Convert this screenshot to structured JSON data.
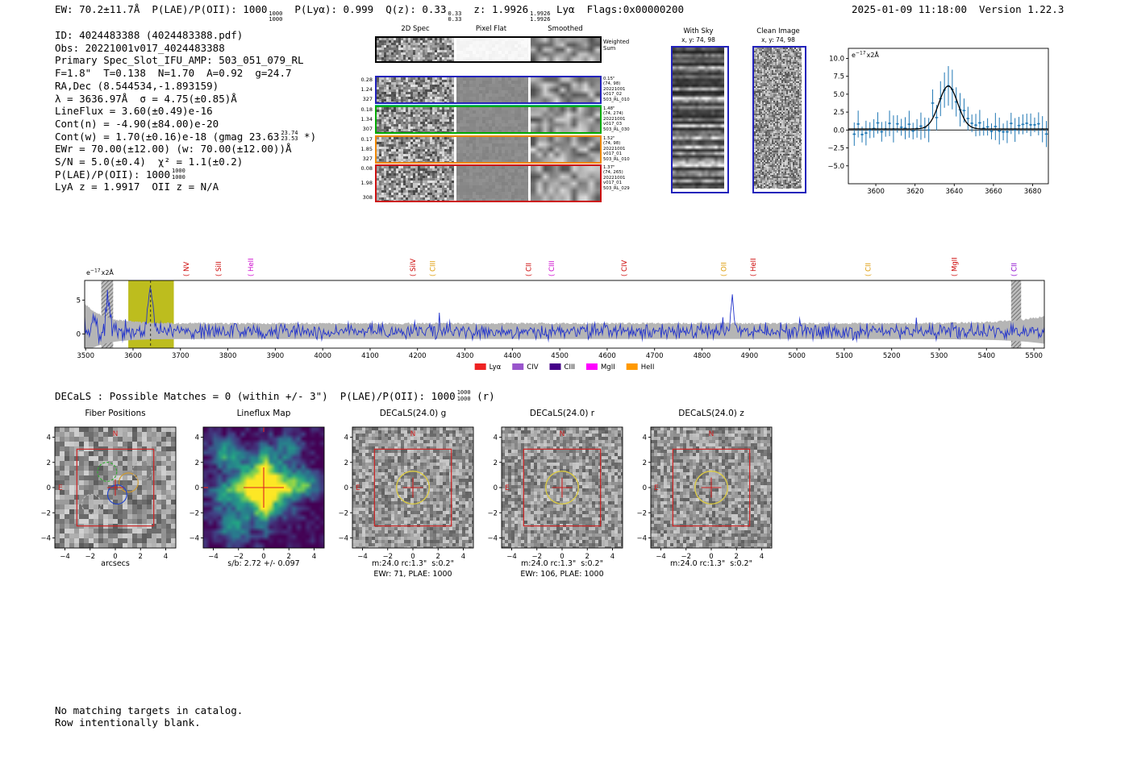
{
  "header": {
    "ew": "EW: 70.2±11.7Å  ",
    "plae": "P(LAE)/P(OII): 1000",
    "plae_hi": "1000",
    "plae_lo": "1000",
    "plya_qz": "  P(Lyα): 0.999  Q(z): 0.33",
    "qz_hi": "0.33",
    "qz_lo": "0.33",
    "z": "  z: 1.9926",
    "z_hi": "1.9926",
    "z_lo": "1.9926",
    "ztype_flags": " Lyα  Flags:0x00000200",
    "datetime": "2025-01-09 11:18:00",
    "version": "Version 1.22.3"
  },
  "info_lines": [
    {
      "text": "ID: 4024483388 (4024483388.pdf)"
    },
    {
      "text": "Obs: 20221001v017_4024483388"
    },
    {
      "text": "Primary Spec_Slot_IFU_AMP: 503_051_079_RL"
    },
    {
      "text": "F=1.8\"  T=0.138  N=1.70  A=0.92  g=24.7"
    },
    {
      "text": "RA,Dec (8.544534,-1.893159)"
    },
    {
      "text": "λ = 3636.97Å  σ = 4.75(±0.85)Å"
    },
    {
      "text": "LineFlux = 3.60(±0.49)e-16"
    },
    {
      "text": "Cont(n) = -4.90(±84.00)e-20"
    },
    {
      "text": "Cont(w) = 1.70(±0.16)e-18 (gmag 23.63",
      "frac_hi": "23.74",
      "frac_lo": "23.53",
      "post": " *)"
    },
    {
      "text": "EWr = 70.00(±12.00) (w: 70.00(±12.00))Å"
    },
    {
      "text": "S/N = 5.0(±0.4)  χ² = 1.1(±0.2)"
    },
    {
      "text": "P(LAE)/P(OII): 1000",
      "frac_hi": "1000",
      "frac_lo": "1000"
    },
    {
      "text": "LyA z = 1.9917  OII z = N/A"
    }
  ],
  "spec2d": {
    "col_headers": [
      "2D Spec",
      "Pixel Flat",
      "Smoothed"
    ],
    "rows": [
      {
        "border": "#000000",
        "left_labels": [],
        "right_labels": [
          "Weighted",
          "Sum"
        ]
      },
      {
        "border": "#2222bb",
        "left_labels": [
          "0.28",
          "1.24",
          "327"
        ],
        "right_labels": [
          "0.15\"",
          "(74, 98)",
          "20221001",
          "v017_02",
          "503_RL_010"
        ]
      },
      {
        "border": "#00aa00",
        "left_labels": [
          "0.18",
          "1.34",
          "307"
        ],
        "right_labels": [
          "1.48\"",
          "(74, 274)",
          "20221001",
          "v017_03",
          "503_RL_030"
        ]
      },
      {
        "border": "#ee8800",
        "left_labels": [
          "0.17",
          "1.85",
          "327"
        ],
        "right_labels": [
          "1.52\"",
          "(74, 98)",
          "20221001",
          "v017_01",
          "503_RL_010"
        ]
      },
      {
        "border": "#cc1111",
        "left_labels": [
          "0.08",
          "1.98",
          "308"
        ],
        "right_labels": [
          "1.37\"",
          "(74, 265)",
          "20221001",
          "v017_01",
          "503_RL_029"
        ]
      }
    ]
  },
  "with_sky": {
    "title": "With Sky",
    "coords": "x, y: 74, 98",
    "border_color": "#2222bb"
  },
  "clean_image": {
    "title": "Clean Image",
    "coords": "x, y: 74, 98",
    "border_color": "#2222bb"
  },
  "decals": {
    "pre": "DECaLS : Possible Matches = 0 (within +/- 3\")  P(LAE)/P(OII): 1000",
    "frac_hi": "1000",
    "frac_lo": "1000",
    "post": " (r)"
  },
  "footer": {
    "line1": "No matching targets in catalog.",
    "line2": "Row intentionally blank."
  },
  "chart_data": [
    {
      "id": "zoom_spectrum",
      "type": "scatter",
      "annotation": {
        "base": "e",
        "exp": "−17",
        "suffix": "x2Å"
      },
      "xlim": [
        3586,
        3688
      ],
      "ylim": [
        -7.5,
        11.4
      ],
      "xticks": [
        3600,
        3620,
        3640,
        3660,
        3680
      ],
      "yticks": [
        10.0,
        7.5,
        5.0,
        2.5,
        0.0,
        -2.5,
        -5.0
      ],
      "marker_color": "#1f77b4",
      "fit_color": "#000000",
      "fit": {
        "center": 3636.97,
        "sigma": 4.75,
        "amplitude": 6.0,
        "baseline": 0.15
      },
      "point_step": 2
    },
    {
      "id": "full_spectrum",
      "type": "line",
      "annotation": {
        "base": "e",
        "exp": "−17",
        "suffix": "x2Å"
      },
      "xlim": [
        3498,
        5522
      ],
      "ylim": [
        -2.1,
        7.9
      ],
      "xticks": [
        3500,
        3600,
        3700,
        3800,
        3900,
        4000,
        4100,
        4200,
        4300,
        4400,
        4500,
        4600,
        4700,
        4800,
        4900,
        5000,
        5100,
        5200,
        5300,
        5400,
        5500
      ],
      "yticks": [
        0,
        5
      ],
      "line_color": "#2233cc",
      "band_color": "#b5b5b5",
      "highlight": {
        "x0": 3590,
        "x1": 3686,
        "color": "#bdbd1e"
      },
      "detect_line": 3636.97,
      "hatched": [
        [
          3533,
          3558
        ],
        [
          5452,
          5473
        ]
      ],
      "peaks": [
        {
          "center": 3636.97,
          "sigma": 4.75,
          "amplitude": 7.0
        },
        {
          "center": 3547,
          "sigma": 3.5,
          "amplitude": 5.6
        },
        {
          "center": 4864,
          "sigma": 3.0,
          "amplitude": 5.1
        }
      ],
      "lines": [
        {
          "name": "NV",
          "wave": 3712,
          "color": "#cc0000"
        },
        {
          "name": "SiII",
          "wave": 3780,
          "color": "#cc0000"
        },
        {
          "name": "HeII",
          "wave": 3848,
          "color": "#cc00cc"
        },
        {
          "name": "SiIV",
          "wave": 4190,
          "color": "#cc0000"
        },
        {
          "name": "CIII",
          "wave": 4232,
          "color": "#dd9900"
        },
        {
          "name": "CII",
          "wave": 4434,
          "color": "#cc0000"
        },
        {
          "name": "CIII",
          "wave": 4483,
          "color": "#cc00cc"
        },
        {
          "name": "CIV",
          "wave": 4636,
          "color": "#cc0000"
        },
        {
          "name": "OII",
          "wave": 4846,
          "color": "#dd9900"
        },
        {
          "name": "HeII",
          "wave": 4908,
          "color": "#cc0000"
        },
        {
          "name": "CII",
          "wave": 5150,
          "color": "#dd9900"
        },
        {
          "name": "MgII",
          "wave": 5332,
          "color": "#cc0000"
        },
        {
          "name": "CII",
          "wave": 5458,
          "color": "#8800cc"
        }
      ],
      "legend": [
        {
          "label": "Lyα",
          "color": "#ee2222"
        },
        {
          "label": "CIV",
          "color": "#9955cc"
        },
        {
          "label": "CIII",
          "color": "#440088"
        },
        {
          "label": "MgII",
          "color": "#ff00ff"
        },
        {
          "label": "HeII",
          "color": "#ff9900"
        }
      ]
    },
    {
      "id": "fiber_positions",
      "type": "cutout-gray",
      "title": "Fiber Positions",
      "xlabel": "arcsecs",
      "xlim": [
        -4.8,
        4.8
      ],
      "ticks": [
        -4,
        -2,
        0,
        2,
        4
      ],
      "noise": {
        "cell": 6,
        "base": 150,
        "spread": 62
      },
      "box_half": 3.05,
      "box_color": "#cc2222",
      "crosshair": {
        "len": 0.65,
        "color": "#cc2222"
      },
      "compass": {
        "n": "N",
        "e": "E",
        "color": "#cc2222"
      },
      "circles": [
        {
          "x": -0.65,
          "y": 1.25,
          "r": 0.76,
          "color": "#33aa33",
          "dash": true
        },
        {
          "x": 1.05,
          "y": 0.4,
          "r": 0.76,
          "color": "#cc9933",
          "dash": false
        },
        {
          "x": 0.15,
          "y": -0.55,
          "r": 0.76,
          "color": "#2244cc",
          "dash": false
        },
        {
          "x": 2.15,
          "y": 1.35,
          "r": 0.76,
          "color": "#aaaaaa",
          "dash": true
        },
        {
          "x": -1.9,
          "y": -1.3,
          "r": 0.76,
          "color": "#bbbbbb",
          "dash": true
        }
      ]
    },
    {
      "id": "lineflux_map",
      "type": "cutout-viridis",
      "title": "Lineflux Map",
      "sub1": "s/b: 2.72 +/- 0.097",
      "xlim": [
        -4.8,
        4.8
      ],
      "ticks": [
        -4,
        -2,
        0,
        2,
        4
      ],
      "crosshair": {
        "len": 1.6,
        "color": "#dd2222"
      },
      "edge_marks": "#dd2222"
    },
    {
      "id": "decals_g",
      "type": "cutout-gray",
      "title": "DECaLS(24.0) g",
      "sub1": "m:24.0 rc:1.3\"  s:0.2\"",
      "sub2": "EWr: 71, PLAE: 1000",
      "xlim": [
        -4.8,
        4.8
      ],
      "ticks": [
        -4,
        -2,
        0,
        2,
        4
      ],
      "noise": {
        "cell": 4,
        "base": 150,
        "spread": 55
      },
      "box_half": 3.05,
      "box_color": "#cc2222",
      "crosshair": {
        "len": 0.8,
        "color": "#cc2222"
      },
      "compass": {
        "n": "N",
        "e": "E",
        "color": "#cc2222"
      },
      "aperture": {
        "r": 1.3,
        "color": "#ddcc44"
      }
    },
    {
      "id": "decals_r",
      "type": "cutout-gray",
      "title": "DECaLS(24.0) r",
      "sub1": "m:24.0 rc:1.3\"  s:0.2\"",
      "sub2": "EWr: 106, PLAE: 1000",
      "xlim": [
        -4.8,
        4.8
      ],
      "ticks": [
        -4,
        -2,
        0,
        2,
        4
      ],
      "noise": {
        "cell": 4,
        "base": 150,
        "spread": 55
      },
      "box_half": 3.05,
      "box_color": "#cc2222",
      "crosshair": {
        "len": 0.8,
        "color": "#cc2222"
      },
      "compass": {
        "n": "N",
        "e": "E",
        "color": "#cc2222"
      },
      "aperture": {
        "r": 1.3,
        "color": "#ddcc44"
      }
    },
    {
      "id": "decals_z",
      "type": "cutout-gray",
      "title": "DECaLS(24.0) z",
      "sub1": "m:24.0 rc:1.3\"  s:0.2\"",
      "xlim": [
        -4.8,
        4.8
      ],
      "ticks": [
        -4,
        -2,
        0,
        2,
        4
      ],
      "noise": {
        "cell": 4,
        "base": 150,
        "spread": 55
      },
      "box_half": 3.05,
      "box_color": "#cc2222",
      "crosshair": {
        "len": 0.8,
        "color": "#cc2222"
      },
      "compass": {
        "n": "N",
        "e": "E",
        "color": "#cc2222"
      },
      "aperture": {
        "r": 1.3,
        "color": "#ddcc44"
      }
    }
  ]
}
